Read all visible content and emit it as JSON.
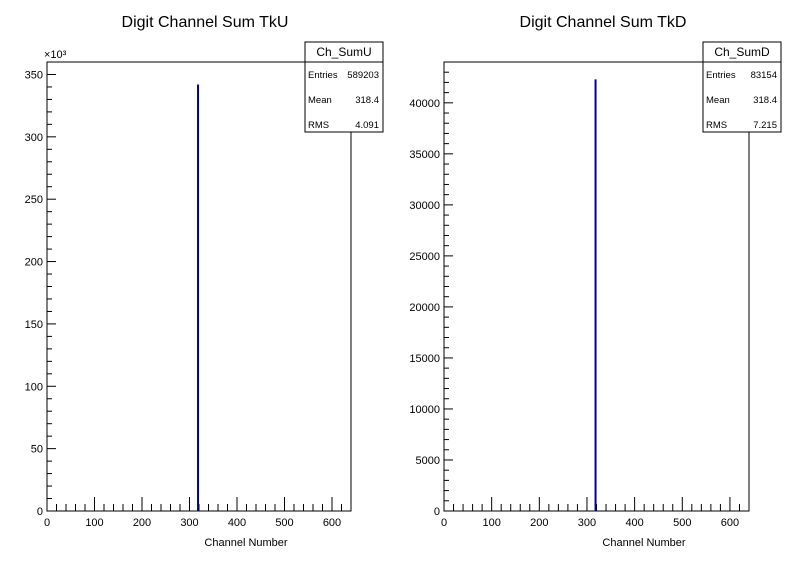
{
  "chart_data": [
    {
      "type": "bar",
      "title": "Digit Channel Sum TkU",
      "xlabel": "Channel Number",
      "ylabel": "",
      "xlim": [
        0,
        640
      ],
      "ylim": [
        0,
        360000
      ],
      "x_ticks": [
        "0",
        "100",
        "200",
        "300",
        "400",
        "500",
        "600"
      ],
      "y_ticks": [
        "0",
        "50",
        "100",
        "150",
        "200",
        "250",
        "300",
        "350"
      ],
      "y_exponent": "×10³",
      "series": [
        {
          "x": [
            318
          ],
          "values": [
            342000
          ],
          "color": "#00008b"
        }
      ],
      "stats": {
        "name": "Ch_SumU",
        "rows": [
          {
            "label": "Entries",
            "value": "589203"
          },
          {
            "label": "Mean",
            "value": "318.4"
          },
          {
            "label": "RMS",
            "value": "4.091"
          }
        ]
      },
      "grid": false,
      "legend": "top-right"
    },
    {
      "type": "bar",
      "title": "Digit Channel Sum TkD",
      "xlabel": "Channel Number",
      "ylabel": "",
      "xlim": [
        0,
        640
      ],
      "ylim": [
        0,
        44000
      ],
      "x_ticks": [
        "0",
        "100",
        "200",
        "300",
        "400",
        "500",
        "600"
      ],
      "y_ticks": [
        "0",
        "5000",
        "10000",
        "15000",
        "20000",
        "25000",
        "30000",
        "35000",
        "40000"
      ],
      "y_exponent": "",
      "series": [
        {
          "x": [
            318
          ],
          "values": [
            42300
          ],
          "color": "#00008b"
        }
      ],
      "stats": {
        "name": "Ch_SumD",
        "rows": [
          {
            "label": "Entries",
            "value": "83154"
          },
          {
            "label": "Mean",
            "value": "318.4"
          },
          {
            "label": "RMS",
            "value": "7.215"
          }
        ]
      },
      "grid": false,
      "legend": "top-right"
    }
  ]
}
